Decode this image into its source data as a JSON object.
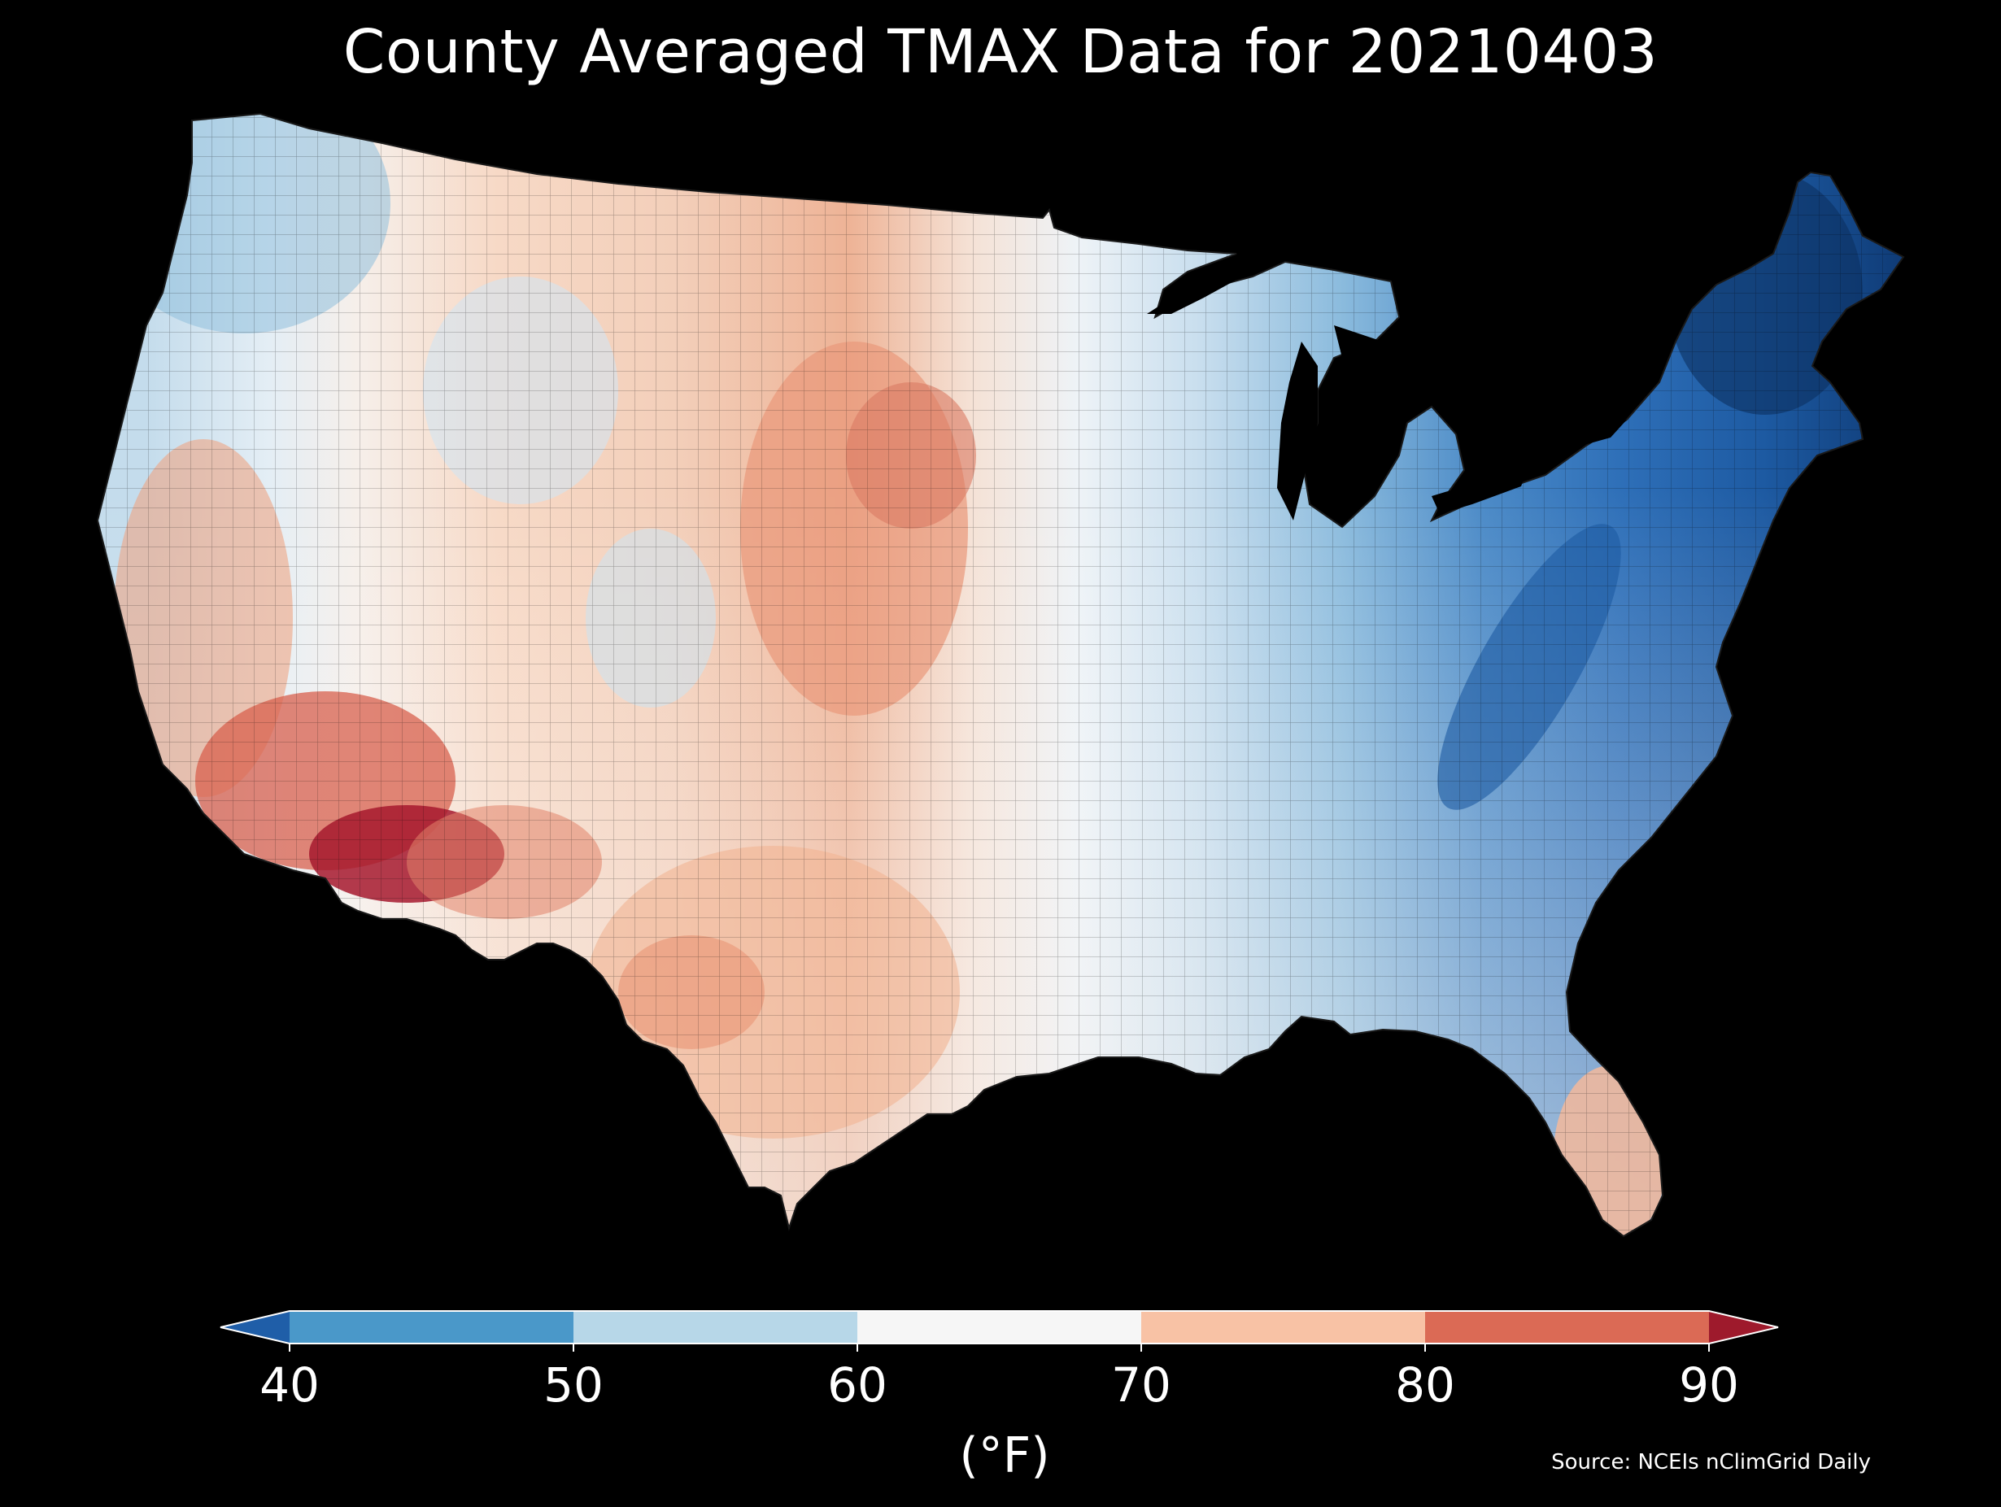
{
  "title": "County Averaged TMAX Data for 20210403",
  "source": "Source: NCEIs nClimGrid Daily",
  "colorbar": {
    "unit": "(°F)",
    "ticks": [
      "40",
      "50",
      "60",
      "70",
      "80",
      "90"
    ],
    "bins": [
      {
        "range": "below 40",
        "color": "#1f5ea8"
      },
      {
        "range": "40-50",
        "color": "#4a98c9"
      },
      {
        "range": "50-60",
        "color": "#b7d7e8"
      },
      {
        "range": "60-70",
        "color": "#f6f6f6"
      },
      {
        "range": "70-80",
        "color": "#f8c2a5"
      },
      {
        "range": "80-90",
        "color": "#db6a55"
      },
      {
        "range": "above 90",
        "color": "#9e1a2c"
      }
    ]
  },
  "map": {
    "region": "Contiguous United States",
    "background": "#000000",
    "boundaries": "county",
    "regional_levels": [
      {
        "region": "Pacific Northwest",
        "level": "50-60"
      },
      {
        "region": "Northern Rockies and Great Basin north",
        "level": "60-70"
      },
      {
        "region": "California Central Valley",
        "level": "70-80"
      },
      {
        "region": "Desert Southwest",
        "level": "80-90"
      },
      {
        "region": "Southwest Arizona",
        "level": "above 90"
      },
      {
        "region": "Central Great Plains",
        "level": "70-80"
      },
      {
        "region": "Texas",
        "level": "70-80"
      },
      {
        "region": "Upper Midwest",
        "level": "50-60"
      },
      {
        "region": "Mississippi Valley and Gulf Coast",
        "level": "60-70"
      },
      {
        "region": "Ohio Valley and Great Lakes",
        "level": "50-60"
      },
      {
        "region": "Appalachians and Mid-Atlantic",
        "level": "40-50"
      },
      {
        "region": "Northeast and New England",
        "level": "below 40"
      },
      {
        "region": "Florida Peninsula",
        "level": "70-80"
      }
    ]
  }
}
